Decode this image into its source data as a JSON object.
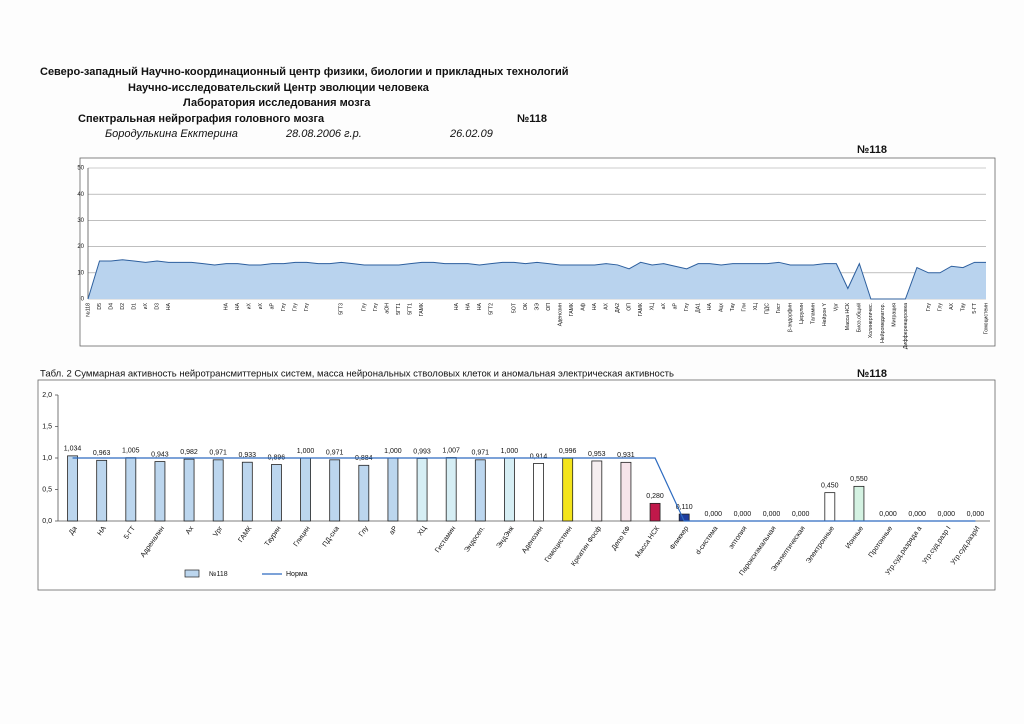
{
  "header": {
    "org": "Северо-западный Научно-координационный центр физики, биологии и прикладных технологий",
    "center": "Научно-исследовательский Центр эволюции человека",
    "lab": "Лаборатория исследования мозга",
    "study": "Спектральная нейрография головного мозга",
    "number": "№118",
    "patient": "Бородулькина Екктерина",
    "birth": "28.08.2006 г.р.",
    "date": "26.02.09"
  },
  "chart_data": [
    {
      "type": "area",
      "title": "№118",
      "color": "#b9d3ee",
      "line_color": "#2d5f9e",
      "grid": true,
      "categories": [
        "№118",
        "D5",
        "D4",
        "D2",
        "D1",
        "иХ",
        "D3",
        "НА",
        null,
        null,
        null,
        null,
        "НА",
        "НА",
        "иХ",
        "иХ",
        "аР",
        "Глу",
        "Глу",
        "Глу",
        null,
        null,
        "5ГТ3",
        null,
        "Глу",
        "Глу",
        "аОН",
        "5ГТ1",
        "5ГТ1",
        "ГАМК",
        null,
        null,
        "НА",
        "НА",
        "НА",
        "5ГТ2",
        null,
        "5ОТ",
        "ОК",
        "ЭЭ",
        "ОП",
        "Аденозин",
        "ГАМК",
        "Аф",
        "НА",
        "АХ",
        "ДА2",
        "ОП",
        "ГАМК",
        "ХЦ",
        "аХ",
        "аР",
        "Глу",
        "ДА1",
        "НА",
        "Ацх",
        "Тау",
        "Гли",
        "ХЦ",
        "ПДС",
        "Гист",
        "β-эндорфин",
        "Церулин",
        "Таламин",
        "Нейрон Y",
        "Vрг",
        "Масса НСК",
        "Биоэ.общий",
        "Холинергичес.",
        "Нейромедиатор.",
        "Миграция",
        "Дифференцировка",
        null,
        "Глу",
        "Глу",
        "АХ",
        "Тау",
        "5-ГТ",
        "Гомоцистеин"
      ],
      "values": [
        0,
        14.5,
        14.5,
        15,
        14.5,
        14,
        14.5,
        14,
        14,
        14,
        13.5,
        13,
        13.5,
        13.5,
        13,
        13,
        13.5,
        13.5,
        14,
        14,
        13.5,
        13.5,
        14,
        13.5,
        13,
        13,
        13,
        13,
        13.5,
        14,
        14,
        13.5,
        13.5,
        13.5,
        13,
        13.5,
        14,
        14,
        13.5,
        14,
        13.5,
        13,
        13,
        13,
        13,
        13.5,
        13,
        11.5,
        14,
        13,
        13.5,
        12.5,
        11.5,
        13.5,
        13.5,
        13,
        13.5,
        13.5,
        13.5,
        13.5,
        14,
        13,
        13,
        13,
        13.5,
        13.5,
        4,
        13.5,
        0,
        0,
        0,
        0,
        12,
        10,
        10,
        12.5,
        12,
        14,
        14
      ],
      "ylim": [
        0,
        50
      ],
      "yticks": [
        0,
        10,
        20,
        30,
        40,
        50
      ]
    },
    {
      "type": "bar",
      "title": "Табл. 2 Суммарная активность нейротрансмиттерных систем, масса нейрональных стволовых клеток и аномальная электрическая активность",
      "subtitle": "№118",
      "grid": false,
      "categories": [
        "Да",
        "НА",
        "5-ГТ",
        "Адреналин",
        "Ах",
        "Vрг",
        "ГАМК",
        "Таурин",
        "Глицин",
        "ПД-сна",
        "Глу",
        "aP",
        "ХЦ",
        "Гистамин",
        "Эндосеп.",
        "ЭндЭнк",
        "Аденозин",
        "Гомоцистеин",
        "Креатин Фосф",
        "Депо КФ",
        "Масса НСК",
        "Фликкер",
        "d-система",
        "эптопия",
        "Пароксизмальная",
        "Эпилептическая",
        "Электронные",
        "Ионные",
        "Протонные",
        "Угр.суд.разряда а",
        "Угр.суд.разр I",
        "Угр.суд.разрИ"
      ],
      "series": [
        {
          "name": "№118",
          "type": "bar",
          "values": [
            1.034,
            0.963,
            1.005,
            0.943,
            0.982,
            0.971,
            0.933,
            0.896,
            1.0,
            0.971,
            0.884,
            1.0,
            0.993,
            1.007,
            0.971,
            1.0,
            0.914,
            0.996,
            0.953,
            0.931,
            0.28,
            0.11,
            0,
            0,
            0,
            0,
            0.45,
            0.55,
            0,
            0,
            0,
            0
          ],
          "value_labels": [
            "1,034",
            "0,963",
            "1,005",
            "0,943",
            "0,982",
            "0,971",
            "0,933",
            "0,896",
            "1,000",
            "0,971",
            "0,884",
            "1,000",
            "0,993",
            "1,007",
            "0,971",
            "1,000",
            "0,914",
            "0,996",
            "0,953",
            "0,931",
            "0,280",
            "0,110",
            "0,000",
            "0,000",
            "0,000",
            "0,000",
            "0,450",
            "0,550",
            "0,000",
            "0,000",
            "0,000",
            "0,000"
          ],
          "colors": [
            "#bcd6ee",
            "#bcd6ee",
            "#bcd6ee",
            "#bcd6ee",
            "#bcd6ee",
            "#bcd6ee",
            "#bcd6ee",
            "#bcd6ee",
            "#bcd6ee",
            "#bcd6ee",
            "#bcd6ee",
            "#bcd6ee",
            "#d6eef4",
            "#d6eef4",
            "#bcd6ee",
            "#d6eef4",
            "#ffffff",
            "#f4e41c",
            "#f6eef0",
            "#f6e4ea",
            "#c0184a",
            "#1f3d9e",
            "#ffffff",
            "#ffffff",
            "#ffffff",
            "#ffffff",
            "#ffffff",
            "#d4f2e2",
            "#ffffff",
            "#ffffff",
            "#ffffff",
            "#ffffff"
          ],
          "color": "#bcd6ee"
        },
        {
          "name": "Норма",
          "type": "line",
          "color": "#2d6bc0",
          "values": [
            1,
            1,
            1,
            1,
            1,
            1,
            1,
            1,
            1,
            1,
            1,
            1,
            1,
            1,
            1,
            1,
            1,
            1,
            1,
            1,
            1,
            0,
            0,
            0,
            0,
            0,
            0,
            0,
            0,
            0,
            0,
            0
          ]
        }
      ],
      "ylim": [
        0,
        2
      ],
      "yticks": [
        {
          "value": 0,
          "label": "0,0"
        },
        {
          "value": 0.5,
          "label": "0,5"
        },
        {
          "value": 1,
          "label": "1,0"
        },
        {
          "value": 1.5,
          "label": "1,5"
        },
        {
          "value": 2,
          "label": "2,0"
        }
      ]
    }
  ]
}
